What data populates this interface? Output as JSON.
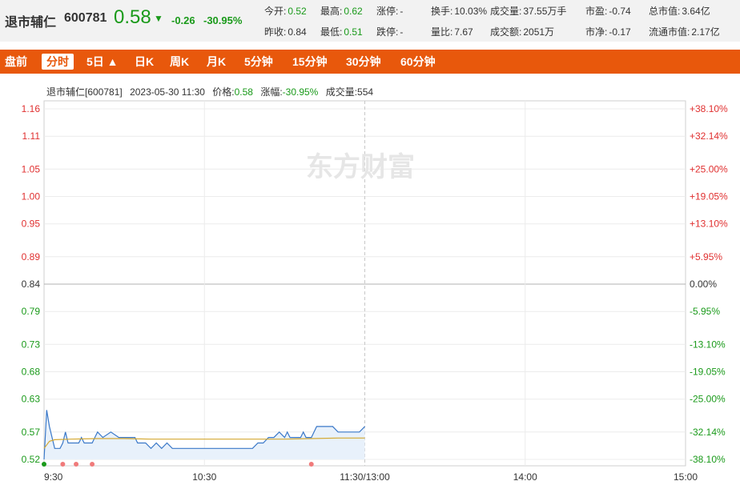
{
  "header": {
    "name": "退市辅仁",
    "code": "600781",
    "price": "0.58",
    "arrow": "▼",
    "change": "-0.26",
    "change_pct": "-30.95%",
    "quotes_row1": [
      {
        "label": "今开:",
        "value": "0.52",
        "green": true
      },
      {
        "label": "最高:",
        "value": "0.62",
        "green": true
      },
      {
        "label": "涨停:",
        "value": "-",
        "green": false
      },
      {
        "label": "换手:",
        "value": "10.03%",
        "green": false
      },
      {
        "label": "成交量:",
        "value": "37.55万手",
        "green": false
      },
      {
        "label": "市盈:",
        "value": "-0.74",
        "green": false
      },
      {
        "label": "总市值:",
        "value": "3.64亿",
        "green": false
      }
    ],
    "quotes_row2": [
      {
        "label": "昨收:",
        "value": "0.84",
        "green": false
      },
      {
        "label": "最低:",
        "value": "0.51",
        "green": true
      },
      {
        "label": "跌停:",
        "value": "-",
        "green": false
      },
      {
        "label": "量比:",
        "value": "7.67",
        "green": false
      },
      {
        "label": "成交额:",
        "value": "2051万",
        "green": false
      },
      {
        "label": "市净:",
        "value": "-0.17",
        "green": false
      },
      {
        "label": "流通市值:",
        "value": "2.17亿",
        "green": false
      }
    ]
  },
  "tabs": [
    "盘前",
    "分时",
    "5日 ▲",
    "日K",
    "周K",
    "月K",
    "5分钟",
    "15分钟",
    "30分钟",
    "60分钟"
  ],
  "active_tab": "分时",
  "info": {
    "name_code": "退市辅仁[600781]",
    "datetime": "2023-05-30 11:30",
    "price_label": "价格:",
    "price": "0.58",
    "amp_label": "涨幅:",
    "amp": "-30.95%",
    "vol_label": "成交量:",
    "vol": "554"
  },
  "watermark": "东方财富",
  "colors": {
    "up": "#e03030",
    "down": "#1a9a1a",
    "price_line": "#3a78c8",
    "avg_line": "#d4a830",
    "brand": "#e8580c"
  },
  "chart_data": {
    "type": "line",
    "y_ticks": [
      "1.16",
      "1.11",
      "1.05",
      "1.00",
      "0.95",
      "0.89",
      "0.84",
      "0.79",
      "0.73",
      "0.68",
      "0.63",
      "0.57",
      "0.52"
    ],
    "y_tick_values": [
      1.16,
      1.11,
      1.05,
      1.0,
      0.95,
      0.89,
      0.84,
      0.79,
      0.73,
      0.68,
      0.63,
      0.57,
      0.52
    ],
    "pct_ticks": [
      "+38.10%",
      "+32.14%",
      "+25.00%",
      "+19.05%",
      "+13.10%",
      "+5.95%",
      "0.00%",
      "-5.95%",
      "-13.10%",
      "-19.05%",
      "-25.00%",
      "-32.14%",
      "-38.10%"
    ],
    "prev_close": 0.84,
    "ylim": [
      0.52,
      1.16
    ],
    "x_ticks": [
      "9:30",
      "10:30",
      "11:30/13:00",
      "14:00",
      "15:00"
    ],
    "x_tick_minutes": [
      0,
      60,
      120,
      180,
      240
    ],
    "x_range": [
      0,
      240
    ],
    "grid": true,
    "series": [
      {
        "x": [
          0,
          1,
          2,
          4,
          5,
          6,
          7,
          8,
          9,
          10,
          11,
          12,
          13,
          14,
          15,
          16,
          17,
          18,
          19,
          20,
          22,
          25,
          28,
          30,
          32,
          34,
          35,
          36,
          38,
          40,
          42,
          44,
          46,
          48,
          50,
          55,
          60,
          65,
          70,
          75,
          78,
          80,
          82,
          84,
          85,
          86,
          88,
          90,
          91,
          92,
          94,
          96,
          97,
          98,
          100,
          102,
          105,
          108,
          110,
          112,
          115,
          118,
          120
        ],
        "y": [
          0.52,
          0.61,
          0.58,
          0.54,
          0.54,
          0.54,
          0.55,
          0.57,
          0.55,
          0.55,
          0.55,
          0.55,
          0.55,
          0.56,
          0.55,
          0.55,
          0.55,
          0.55,
          0.56,
          0.57,
          0.56,
          0.57,
          0.56,
          0.56,
          0.56,
          0.56,
          0.55,
          0.55,
          0.55,
          0.54,
          0.55,
          0.54,
          0.55,
          0.54,
          0.54,
          0.54,
          0.54,
          0.54,
          0.54,
          0.54,
          0.54,
          0.55,
          0.55,
          0.56,
          0.56,
          0.56,
          0.57,
          0.56,
          0.57,
          0.56,
          0.56,
          0.56,
          0.57,
          0.56,
          0.56,
          0.58,
          0.58,
          0.58,
          0.57,
          0.57,
          0.57,
          0.57,
          0.58
        ]
      },
      {
        "x": [
          0,
          2,
          4,
          10,
          20,
          30,
          40,
          50,
          60,
          70,
          80,
          90,
          100,
          110,
          120
        ],
        "y": [
          0.54,
          0.553,
          0.556,
          0.557,
          0.558,
          0.558,
          0.557,
          0.557,
          0.557,
          0.557,
          0.557,
          0.557,
          0.558,
          0.559,
          0.559
        ]
      }
    ],
    "markers": {
      "x": [
        0,
        7,
        12,
        18,
        100
      ],
      "kind": [
        "down",
        "up",
        "up",
        "up",
        "up"
      ]
    }
  }
}
